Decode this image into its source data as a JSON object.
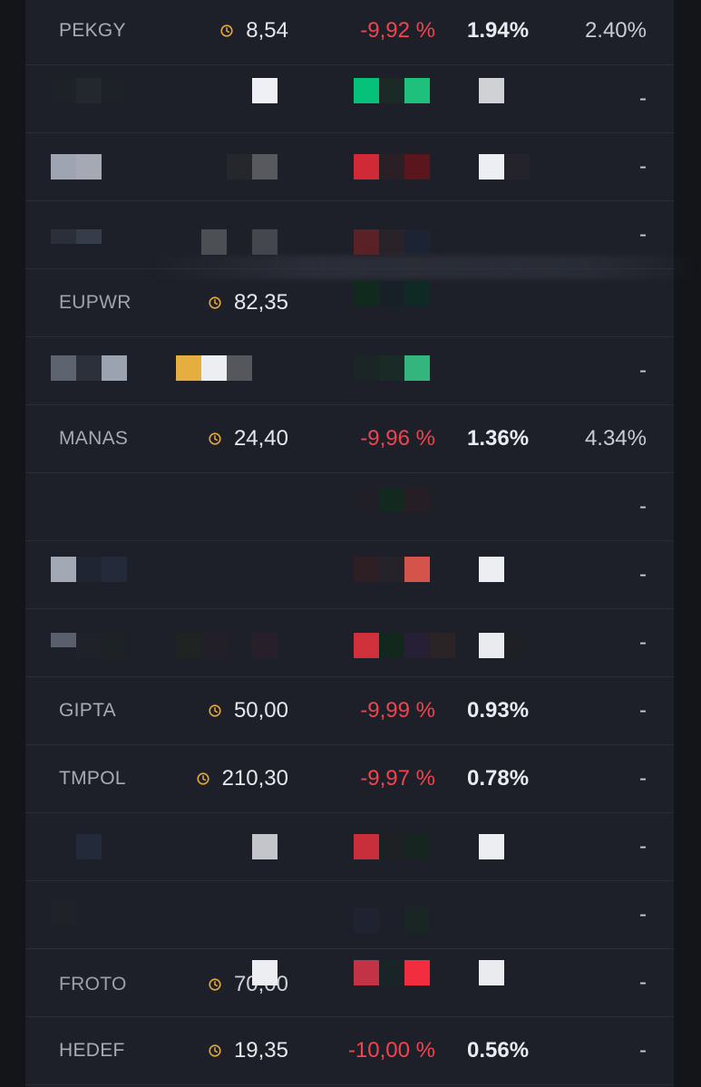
{
  "colors": {
    "panel_bg": "#1e2029",
    "negative": "#f0444e",
    "clock": "#e4a93a",
    "symbol_text": "#a7abb6"
  },
  "icons": {
    "price_status": "clock-icon"
  },
  "rows": [
    {
      "symbol": "PEKGY",
      "price": "8,54",
      "change": "-9,92 %",
      "volume_share": "1.94%",
      "extra": "2.40%"
    },
    {
      "symbol": "",
      "price": "",
      "change": "",
      "volume_share": "",
      "extra": "-"
    },
    {
      "symbol": "",
      "price": "",
      "change": "",
      "volume_share": "",
      "extra": "-"
    },
    {
      "symbol": "",
      "price": "",
      "change": "",
      "volume_share": "",
      "extra": "-"
    },
    {
      "symbol": "EUPWR",
      "price": "82,35",
      "change": "",
      "volume_share": "",
      "extra": ""
    },
    {
      "symbol": "",
      "price": "",
      "change": "",
      "volume_share": "",
      "extra": "-"
    },
    {
      "symbol": "MANAS",
      "price": "24,40",
      "change": "-9,96 %",
      "volume_share": "1.36%",
      "extra": "4.34%"
    },
    {
      "symbol": "",
      "price": "",
      "change": "",
      "volume_share": "",
      "extra": "-"
    },
    {
      "symbol": "",
      "price": "",
      "change": "",
      "volume_share": "",
      "extra": "-"
    },
    {
      "symbol": "",
      "price": "",
      "change": "",
      "volume_share": "",
      "extra": "-"
    },
    {
      "symbol": "GIPTA",
      "price": "50,00",
      "change": "-9,99 %",
      "volume_share": "0.93%",
      "extra": "-"
    },
    {
      "symbol": "TMPOL",
      "price": "210,30",
      "change": "-9,97 %",
      "volume_share": "0.78%",
      "extra": "-"
    },
    {
      "symbol": "",
      "price": "",
      "change": "",
      "volume_share": "",
      "extra": "-"
    },
    {
      "symbol": "",
      "price": "",
      "change": "",
      "volume_share": "",
      "extra": "-"
    },
    {
      "symbol": "FROTO",
      "price": "70,00",
      "change": "",
      "volume_share": "",
      "extra": "-"
    },
    {
      "symbol": "HEDEF",
      "price": "19,35",
      "change": "-10,00 %",
      "volume_share": "0.56%",
      "extra": "-"
    }
  ]
}
